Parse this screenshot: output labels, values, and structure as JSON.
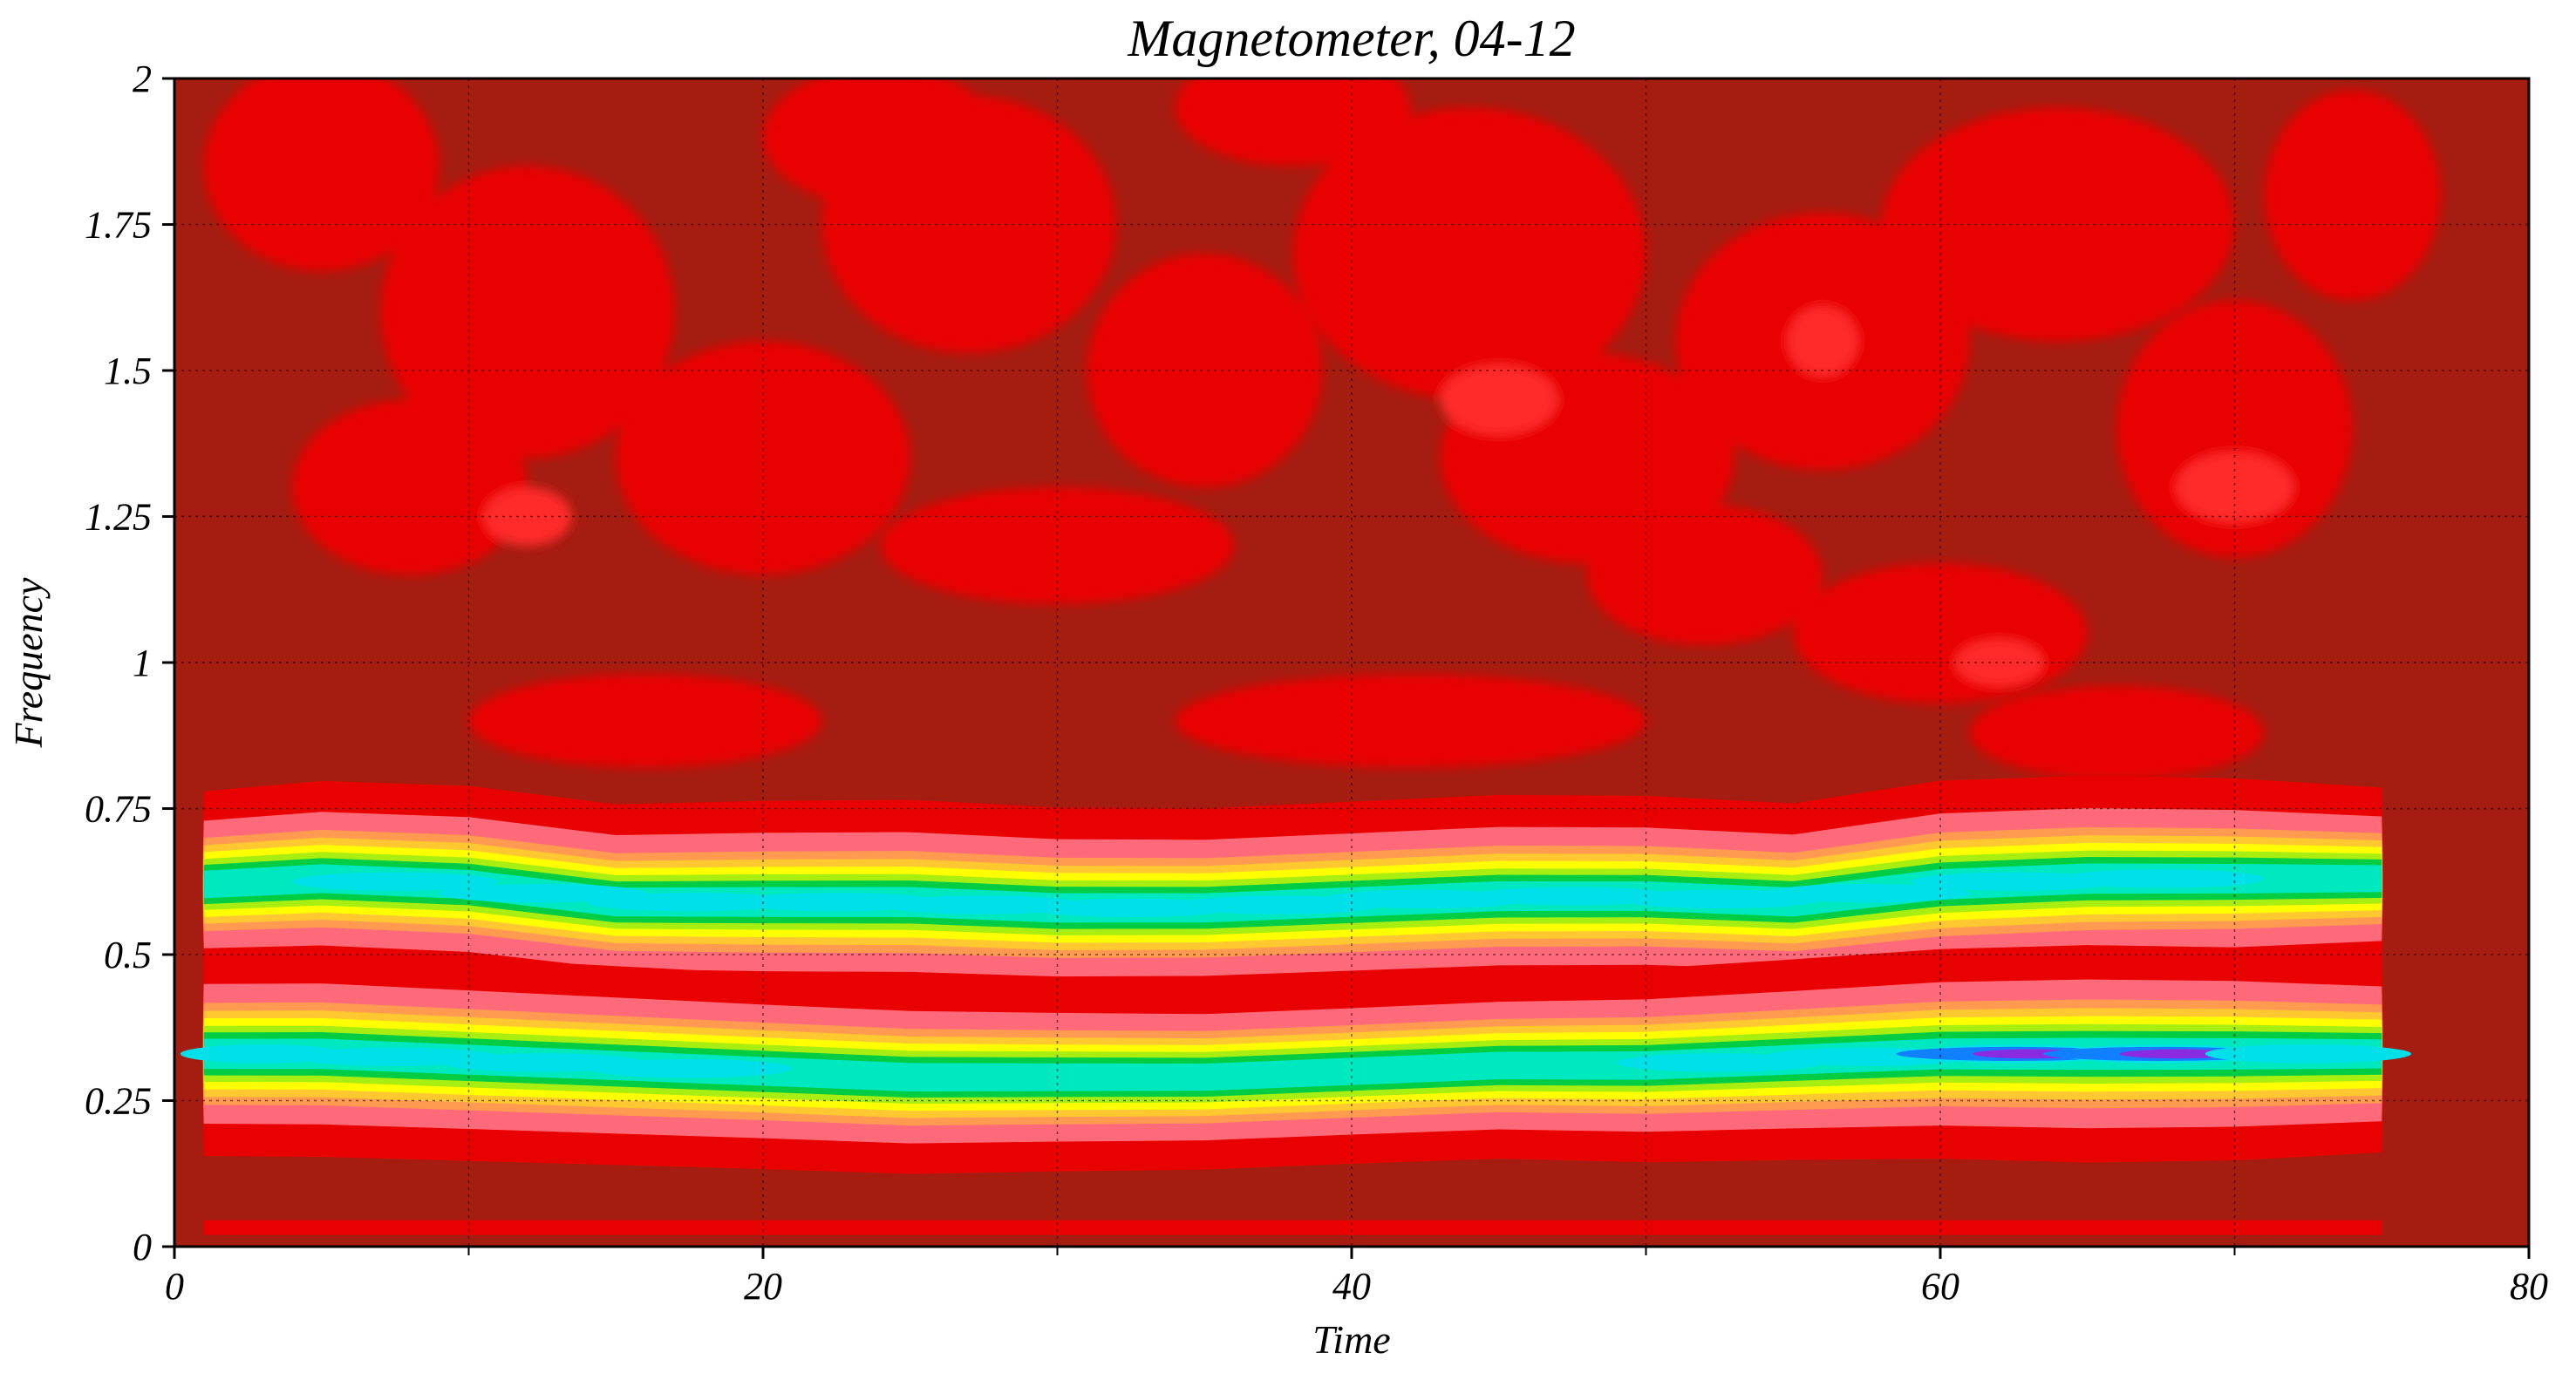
{
  "chart_data": {
    "type": "heatmap",
    "title": "Magnetometer, 04-12",
    "xlabel": "Time",
    "ylabel": "Frequency",
    "xlim": [
      0,
      80
    ],
    "ylim": [
      0,
      2
    ],
    "grid": true,
    "x_ticks": [
      0,
      20,
      40,
      60,
      80
    ],
    "x_tick_labels": [
      "0",
      "20",
      "40",
      "60",
      "80"
    ],
    "y_ticks": [
      0,
      0.25,
      0.5,
      0.75,
      1,
      1.25,
      1.5,
      1.75,
      2
    ],
    "y_tick_labels": [
      "0",
      "0.25",
      "0.5",
      "0.75",
      "1",
      "1.25",
      "1.5",
      "1.75",
      "2"
    ],
    "colors": {
      "background": "#a51c10",
      "palette": [
        "#a51c10",
        "#e90000",
        "#ff2a2a",
        "#ff6a7a",
        "#ff9a50",
        "#ffc830",
        "#ffff00",
        "#a8ee10",
        "#00cc44",
        "#00e8c0",
        "#00e0e8",
        "#1080ff",
        "#2040ff",
        "#8a2be2"
      ]
    },
    "bands": [
      {
        "name": "upper",
        "x": [
          1,
          5,
          10,
          15,
          20,
          25,
          30,
          35,
          40,
          45,
          50,
          55,
          60,
          65,
          70,
          75
        ],
        "y_center": [
          0.62,
          0.63,
          0.62,
          0.59,
          0.59,
          0.59,
          0.58,
          0.58,
          0.59,
          0.6,
          0.6,
          0.59,
          0.62,
          0.63,
          0.63,
          0.63
        ],
        "intensity": [
          0.6,
          0.7,
          0.72,
          0.7,
          0.78,
          0.8,
          0.76,
          0.74,
          0.76,
          0.78,
          0.76,
          0.72,
          0.84,
          0.82,
          0.76,
          0.55
        ]
      },
      {
        "name": "lower",
        "x": [
          1,
          5,
          10,
          15,
          20,
          25,
          30,
          35,
          40,
          45,
          50,
          55,
          60,
          65,
          70,
          75
        ],
        "y_center": [
          0.33,
          0.33,
          0.32,
          0.31,
          0.3,
          0.29,
          0.29,
          0.29,
          0.3,
          0.31,
          0.31,
          0.32,
          0.33,
          0.33,
          0.33,
          0.33
        ],
        "intensity": [
          0.8,
          0.82,
          0.78,
          0.74,
          0.7,
          0.68,
          0.62,
          0.58,
          0.58,
          0.6,
          0.68,
          0.76,
          0.86,
          0.95,
          0.9,
          0.72
        ]
      }
    ]
  }
}
